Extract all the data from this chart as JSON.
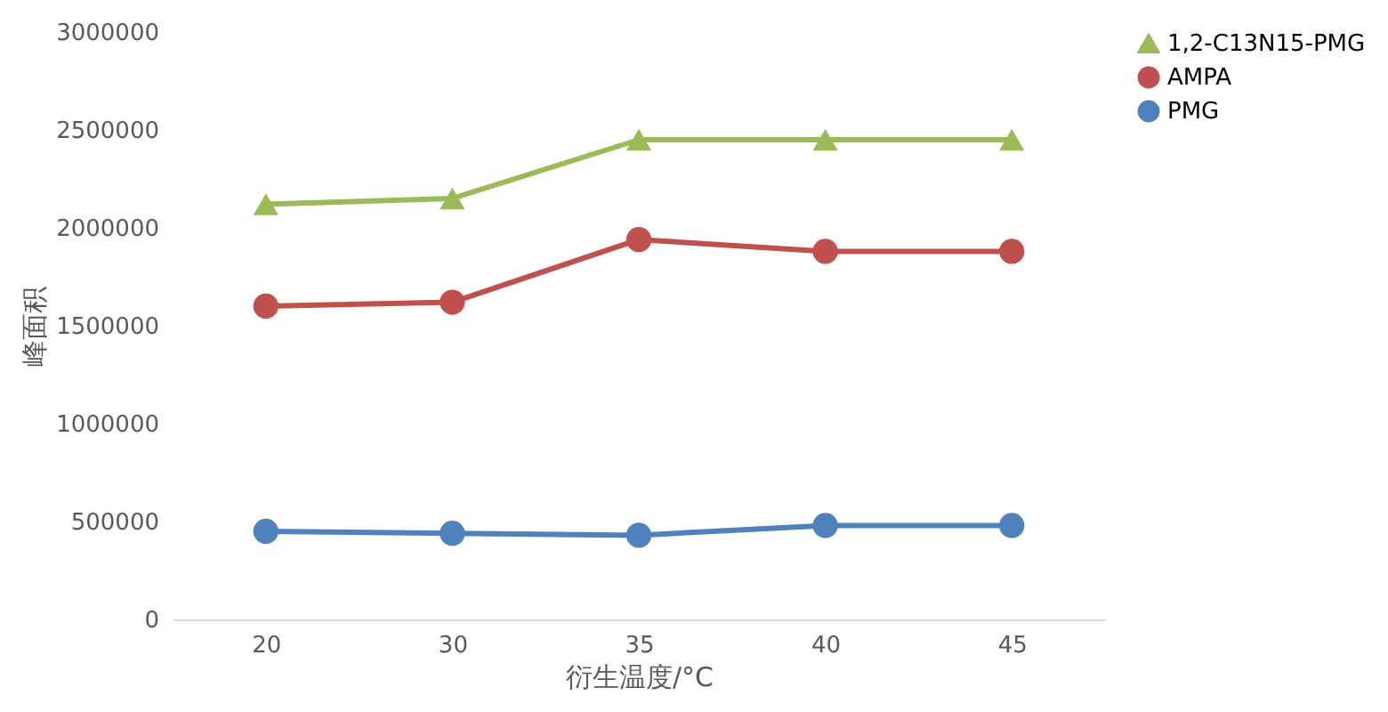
{
  "chart_data": {
    "type": "line",
    "xlabel": "衍生温度/°C",
    "ylabel": "峰面积",
    "categories": [
      "20",
      "30",
      "35",
      "40",
      "45"
    ],
    "series": [
      {
        "name": "1,2-C13N15-PMG",
        "color": "#9bbb59",
        "marker": "triangle",
        "values": [
          2120000,
          2150000,
          2450000,
          2450000,
          2450000
        ]
      },
      {
        "name": "AMPA",
        "color": "#c0504d",
        "marker": "circle",
        "values": [
          1600000,
          1620000,
          1940000,
          1880000,
          1880000
        ]
      },
      {
        "name": "PMG",
        "color": "#4f81bd",
        "marker": "circle",
        "values": [
          450000,
          440000,
          430000,
          480000,
          480000
        ]
      }
    ],
    "ylim": [
      0,
      3000000
    ],
    "yticks": [
      0,
      500000,
      1000000,
      1500000,
      2000000,
      2500000,
      3000000
    ],
    "grid": false,
    "legend": "right",
    "line_style": "solid"
  }
}
